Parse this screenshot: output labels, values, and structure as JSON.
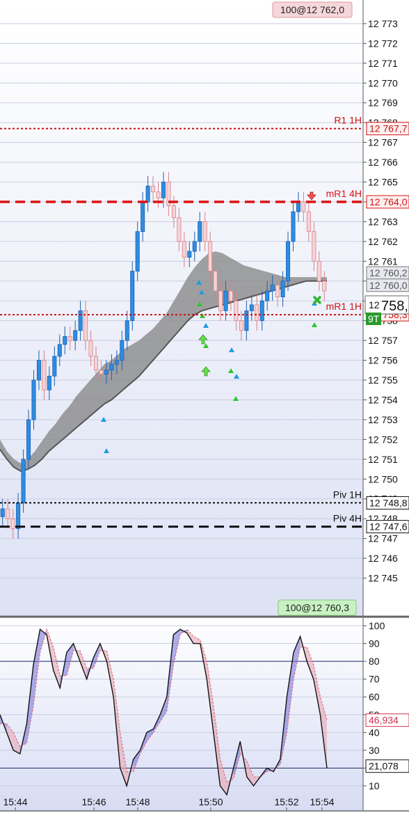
{
  "chart_data": [
    {
      "type": "candlestick",
      "ylim": [
        12744,
        12773.7
      ],
      "y_ticks": [
        "12 773",
        "12 772",
        "12 771",
        "12 770",
        "12 769",
        "12 768",
        "12 767",
        "12 766",
        "12 765",
        "12 764",
        "12 763",
        "12 762",
        "12 761",
        "12 760",
        "12 759",
        "12 758",
        "12 757",
        "12 756",
        "12 755",
        "12 754",
        "12 753",
        "12 752",
        "12 751",
        "12 750",
        "12 749",
        "12 748",
        "12 747",
        "12 746",
        "12 745"
      ],
      "top_label": "100@12 762,0",
      "bottom_label": "100@12 760,3",
      "levels": [
        {
          "name": "R1 1H",
          "tag": "12 767,7",
          "value": 12767.7,
          "color": "#cc1111",
          "style": "dotted"
        },
        {
          "name": "mR1 4H",
          "tag": "12 764,0",
          "value": 12764.0,
          "color": "#dd1111",
          "style": "dashed"
        },
        {
          "name": "mR1 1H",
          "tag": "12 758,3",
          "value": 12758.3,
          "color": "#cc1111",
          "style": "dotted"
        },
        {
          "name": "Piv 1H",
          "tag": "12 748,8",
          "value": 12748.8,
          "color": "#111111",
          "style": "dotted"
        },
        {
          "name": "Piv 4H",
          "tag": "12 747,6",
          "value": 12747.6,
          "color": "#111111",
          "style": "dashed"
        }
      ],
      "band_tags": [
        {
          "tag": "12 760,2",
          "value": 12760.2
        },
        {
          "tag": "12 760,0",
          "value": 12760.0
        }
      ],
      "last_price_tag": {
        "prefix": "12",
        "value": "758,",
        "side": "9T"
      },
      "closes": [
        12748.5,
        12748.0,
        12747.5,
        12748.8,
        12751.0,
        12753.0,
        12755.0,
        12756.0,
        12754.5,
        12755.2,
        12756.2,
        12756.8,
        12757.2,
        12757.0,
        12757.5,
        12758.5,
        12757.0,
        12756.2,
        12755.5,
        12755.3,
        12755.5,
        12755.8,
        12756.0,
        12757.0,
        12758.0,
        12760.5,
        12762.5,
        12764.0,
        12764.8,
        12764.5,
        12764.2,
        12765.0,
        12763.8,
        12763.2,
        12762.0,
        12761.2,
        12761.5,
        12762.0,
        12763.0,
        12762.0,
        12760.5,
        12759.5,
        12758.5,
        12759.5,
        12759.0,
        12758.0,
        12757.5,
        12758.5,
        12758.8,
        12758.0,
        12759.0,
        12759.5,
        12759.8,
        12759.2,
        12760.0,
        12762.0,
        12763.5,
        12764.0,
        12763.5,
        12762.5,
        12761.0,
        12760.0,
        12759.5
      ],
      "band_upper": [
        12752.0,
        12751.4,
        12751.0,
        12750.8,
        12751.0,
        12751.4,
        12751.9,
        12752.4,
        12752.8,
        12753.3,
        12753.7,
        12754.2,
        12754.6,
        12755.0,
        12755.4,
        12755.8,
        12756.0,
        12756.3,
        12756.6,
        12756.8,
        12757.0,
        12757.3,
        12757.6,
        12758.0,
        12758.4,
        12759.0,
        12759.6,
        12760.2,
        12760.7,
        12761.1,
        12761.4,
        12761.5,
        12761.4,
        12761.2,
        12761.0,
        12760.8,
        12760.7,
        12760.6,
        12760.5,
        12760.4,
        12760.3,
        12760.2,
        12760.2,
        12760.2,
        12760.2,
        12760.2,
        12760.2,
        12760.2
      ],
      "band_lower": [
        12751.5,
        12751.0,
        12750.6,
        12750.4,
        12750.5,
        12750.7,
        12751.0,
        12751.4,
        12751.7,
        12752.0,
        12752.3,
        12752.6,
        12752.9,
        12753.2,
        12753.5,
        12753.8,
        12754.0,
        12754.3,
        12754.6,
        12754.9,
        12755.2,
        12755.6,
        12756.0,
        12756.4,
        12756.8,
        12757.2,
        12757.6,
        12758.0,
        12758.3,
        12758.5,
        12758.6,
        12758.7,
        12758.8,
        12758.9,
        12759.0,
        12759.1,
        12759.2,
        12759.3,
        12759.4,
        12759.5,
        12759.6,
        12759.7,
        12759.8,
        12759.9,
        12760.0,
        12760.0,
        12760.0,
        12760.0
      ]
    },
    {
      "type": "line",
      "x_ticks": [
        "15:44",
        "15:46",
        "15:48",
        "15:50",
        "15:52",
        "15:54"
      ],
      "y_ticks": [
        "100",
        "90",
        "80",
        "70",
        "60",
        "50",
        "40",
        "30",
        "20",
        "10"
      ],
      "ylim": [
        -5,
        105
      ],
      "levels": [
        80,
        20
      ],
      "series": [
        {
          "name": "",
          "color": "#111111",
          "values": [
            50,
            40,
            30,
            28,
            45,
            78,
            98,
            95,
            75,
            65,
            85,
            90,
            80,
            70,
            82,
            90,
            80,
            60,
            20,
            10,
            25,
            30,
            40,
            42,
            50,
            60,
            95,
            98,
            96,
            90,
            90,
            70,
            40,
            10,
            5,
            20,
            35,
            15,
            10,
            15,
            20,
            18,
            25,
            60,
            85,
            94,
            80,
            70,
            50,
            20
          ]
        },
        {
          "name": "",
          "color": "#e07080",
          "values": [
            45,
            45,
            40,
            32,
            34,
            55,
            85,
            98,
            88,
            72,
            72,
            86,
            86,
            76,
            76,
            86,
            86,
            70,
            40,
            18,
            18,
            28,
            35,
            40,
            46,
            52,
            78,
            95,
            98,
            94,
            92,
            80,
            55,
            25,
            12,
            14,
            28,
            24,
            15,
            15,
            18,
            19,
            22,
            40,
            70,
            88,
            88,
            78,
            60,
            47
          ]
        }
      ],
      "value_tags": [
        {
          "tag": "46,934",
          "value": 46.934,
          "color": "#d23050"
        },
        {
          "tag": "21,078",
          "value": 21.078,
          "color": "#111111"
        }
      ]
    }
  ]
}
